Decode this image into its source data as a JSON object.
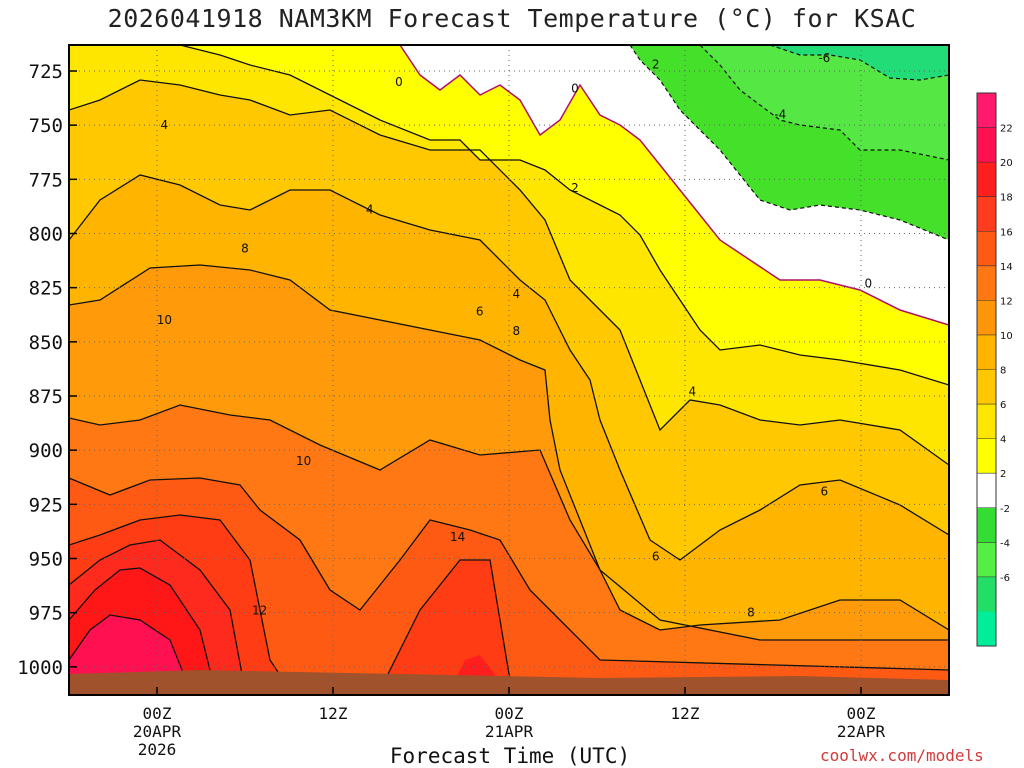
{
  "chart_data": {
    "type": "heatmap",
    "title": "2026041918 NAM3KM Forecast Temperature (°C) for KSAC",
    "xlabel": "Forecast Time (UTC)",
    "ylabel": "",
    "y_axis": {
      "ticks": [
        "725",
        "750",
        "775",
        "800",
        "825",
        "850",
        "875",
        "900",
        "925",
        "950",
        "975",
        "1000"
      ],
      "ylim": [
        1013,
        713
      ],
      "direction": "pressure decreasing upward"
    },
    "x_axis": {
      "ticks": [
        {
          "line1": "00Z",
          "line2": "20APR",
          "line3": "2026",
          "hour": 0
        },
        {
          "line1": "12Z",
          "line2": "",
          "line3": "",
          "hour": 12
        },
        {
          "line1": "00Z",
          "line2": "21APR",
          "line3": "",
          "hour": 24
        },
        {
          "line1": "12Z",
          "line2": "",
          "line3": "",
          "hour": 36
        },
        {
          "line1": "00Z",
          "line2": "22APR",
          "line3": "",
          "hour": 48
        }
      ],
      "xlim": [
        -6,
        54
      ]
    },
    "colorbar": {
      "labels": [
        "22",
        "20",
        "18",
        "16",
        "14",
        "12",
        "10",
        "8",
        "6",
        "4",
        "2",
        "-2",
        "-4",
        "-6"
      ],
      "colors": [
        "#ff1a6e",
        "#ff1050",
        "#ff1e1e",
        "#ff3c1e",
        "#ff5a14",
        "#ff7814",
        "#ff960a",
        "#ffb400",
        "#ffc800",
        "#ffe600",
        "#ffff00",
        "#ffffff",
        "#33dd33",
        "#55ee44",
        "#22dd66",
        "#00ee99"
      ]
    },
    "contour_labels": [
      {
        "text": "0",
        "hour": 16.5,
        "p": 730
      },
      {
        "text": "0",
        "hour": 28.5,
        "p": 733
      },
      {
        "text": "2",
        "hour": 34.0,
        "p": 722
      },
      {
        "text": "-6",
        "hour": 45.5,
        "p": 719
      },
      {
        "text": "4",
        "hour": 0.5,
        "p": 750
      },
      {
        "text": "-4",
        "hour": 42.5,
        "p": 745
      },
      {
        "text": "2",
        "hour": 28.5,
        "p": 779
      },
      {
        "text": "4",
        "hour": 14.5,
        "p": 789
      },
      {
        "text": "8",
        "hour": 6.0,
        "p": 807
      },
      {
        "text": "4",
        "hour": 24.5,
        "p": 828
      },
      {
        "text": "6",
        "hour": 22.0,
        "p": 836
      },
      {
        "text": "10",
        "hour": 0.5,
        "p": 840
      },
      {
        "text": "8",
        "hour": 24.5,
        "p": 845
      },
      {
        "text": "4",
        "hour": 36.5,
        "p": 873
      },
      {
        "text": "10",
        "hour": 10.0,
        "p": 905
      },
      {
        "text": "6",
        "hour": 45.5,
        "p": 919
      },
      {
        "text": "14",
        "hour": 20.5,
        "p": 940
      },
      {
        "text": "6",
        "hour": 34.0,
        "p": 949
      },
      {
        "text": "12",
        "hour": 7.0,
        "p": 974
      },
      {
        "text": "8",
        "hour": 40.5,
        "p": 975
      },
      {
        "text": "0",
        "hour": 48.5,
        "p": 823
      }
    ]
  },
  "credit": "coolwx.com/models"
}
